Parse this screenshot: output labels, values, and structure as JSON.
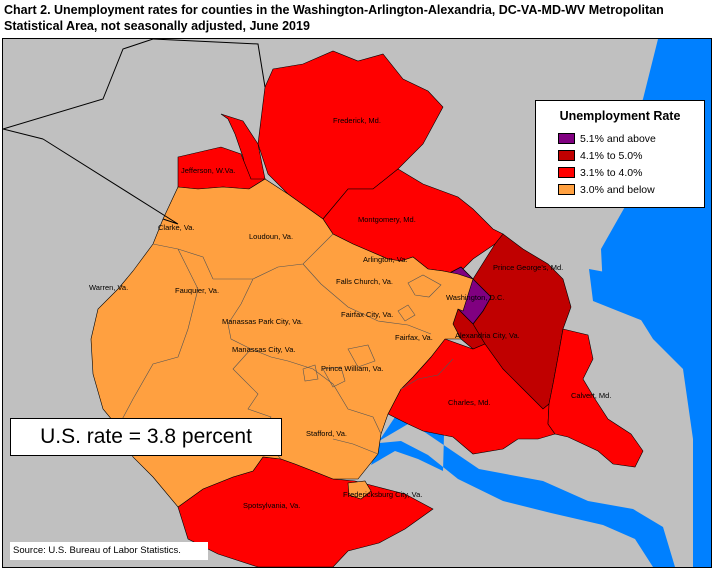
{
  "title": "Chart 2. Unemployment rates for counties in the Washington-Arlington-Alexandria, DC-VA-MD-WV Metropolitan Statistical Area, not seasonally adjusted, June 2019",
  "colors": {
    "background": "#c0c0c0",
    "water": "#0080ff",
    "band_5_1_above": "#800080",
    "band_4_1_5_0": "#c00000",
    "band_3_1_4_0": "#ff0000",
    "band_3_0_below": "#ffa040"
  },
  "legend": {
    "title": "Unemployment Rate",
    "items": [
      {
        "label": "5.1% and above",
        "color": "#800080"
      },
      {
        "label": "4.1% to 5.0%",
        "color": "#c00000"
      },
      {
        "label": "3.1% to 4.0%",
        "color": "#ff0000"
      },
      {
        "label": "3.0% and below",
        "color": "#ffa040"
      }
    ]
  },
  "counties": [
    {
      "name": "Frederick, Md.",
      "band": "3.1% to 4.0%"
    },
    {
      "name": "Jefferson, W.Va.",
      "band": "3.1% to 4.0%"
    },
    {
      "name": "Montgomery, Md.",
      "band": "3.1% to 4.0%"
    },
    {
      "name": "Prince George's, Md.",
      "band": "4.1% to 5.0%"
    },
    {
      "name": "Washington, D.C.",
      "band": "5.1% and above"
    },
    {
      "name": "Alexandria City, Va.",
      "band": "4.1% to 5.0%"
    },
    {
      "name": "Charles, Md.",
      "band": "3.1% to 4.0%"
    },
    {
      "name": "Calvert, Md.",
      "band": "3.1% to 4.0%"
    },
    {
      "name": "Spotsylvania, Va.",
      "band": "3.1% to 4.0%"
    },
    {
      "name": "Clarke, Va.",
      "band": "3.0% and below"
    },
    {
      "name": "Loudoun, Va.",
      "band": "3.0% and below"
    },
    {
      "name": "Warren, Va.",
      "band": "3.0% and below"
    },
    {
      "name": "Fauquier, Va.",
      "band": "3.0% and below"
    },
    {
      "name": "Arlington, Va.",
      "band": "3.0% and below"
    },
    {
      "name": "Falls Church, Va.",
      "band": "3.0% and below"
    },
    {
      "name": "Fairfax City, Va.",
      "band": "3.0% and below"
    },
    {
      "name": "Manassas Park City, Va.",
      "band": "3.0% and below"
    },
    {
      "name": "Manassas City, Va.",
      "band": "3.0% and below"
    },
    {
      "name": "Fairfax, Va.",
      "band": "3.0% and below"
    },
    {
      "name": "Prince William, Va.",
      "band": "3.0% and below"
    },
    {
      "name": "Stafford, Va.",
      "band": "3.0% and below"
    },
    {
      "name": "Fredericksburg City, Va.",
      "band": "3.0% and below"
    }
  ],
  "us_rate_text": "U.S. rate = 3.8 percent",
  "source_text": "Source: U.S. Bureau of Labor Statistics."
}
